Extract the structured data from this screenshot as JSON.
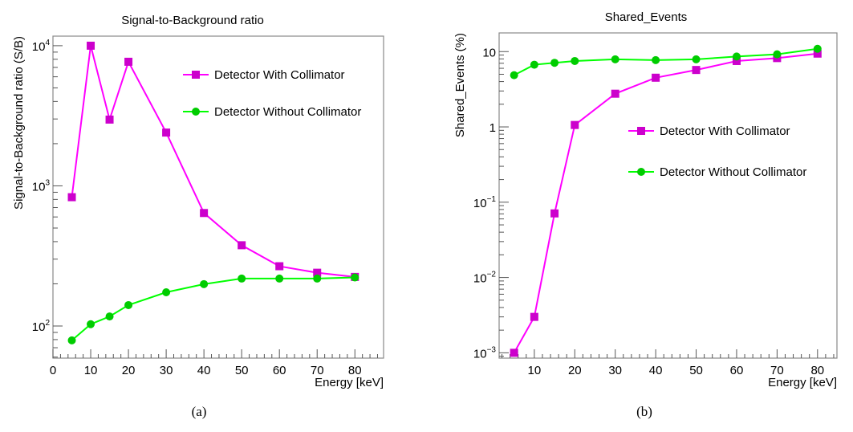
{
  "chart_data": [
    {
      "type": "line",
      "title": "Signal-to-Background ratio",
      "xlabel": "Energy [keV]",
      "ylabel": "Signal-to-Background ratio (S/B)",
      "caption": "(a)",
      "xlim": [
        0,
        87.6
      ],
      "ylim": [
        59,
        11700
      ],
      "yscale": "log",
      "xticks": [
        0,
        10,
        20,
        30,
        40,
        50,
        60,
        70,
        80
      ],
      "yticks": [
        {
          "value": 100,
          "base": "10",
          "exp": "2"
        },
        {
          "value": 1000,
          "base": "10",
          "exp": "3"
        },
        {
          "value": 10000,
          "base": "10",
          "exp": "4"
        }
      ],
      "grid": false,
      "legend_placement": "top-right",
      "x": [
        5,
        10,
        15,
        20,
        30,
        40,
        50,
        60,
        70,
        80
      ],
      "series": [
        {
          "name": "Detector With Collimator",
          "marker": "square",
          "line_color": "#ff00ff",
          "marker_color": "#cc00cc",
          "values": [
            830,
            10000,
            2970,
            7680,
            2400,
            640,
            377,
            267,
            240,
            224
          ]
        },
        {
          "name": "Detector Without Collimator",
          "marker": "circle",
          "line_color": "#00ff00",
          "marker_color": "#00cc00",
          "values": [
            79,
            103,
            117,
            141,
            174,
            199,
            218,
            218,
            218,
            222
          ]
        }
      ]
    },
    {
      "type": "line",
      "title": "Shared_Events",
      "xlabel": "Energy [keV]",
      "ylabel": "Shared_Events (%)",
      "caption": "(b)",
      "xlim": [
        1.3,
        84.8
      ],
      "ylim": [
        0.00085,
        17.7
      ],
      "yscale": "log",
      "xticks": [
        10,
        20,
        30,
        40,
        50,
        60,
        70,
        80
      ],
      "yticks": [
        {
          "value": 0.001,
          "base": "10",
          "exp": "−3"
        },
        {
          "value": 0.01,
          "base": "10",
          "exp": "−2"
        },
        {
          "value": 0.1,
          "base": "10",
          "exp": "−1"
        },
        {
          "value": 1,
          "base": "1",
          "exp": ""
        },
        {
          "value": 10,
          "base": "10",
          "exp": ""
        }
      ],
      "grid": false,
      "legend_placement": "center-right",
      "x": [
        5,
        10,
        15,
        20,
        30,
        40,
        50,
        60,
        70,
        80
      ],
      "series": [
        {
          "name": "Detector With Collimator",
          "marker": "square",
          "line_color": "#ff00ff",
          "marker_color": "#cc00cc",
          "values": [
            0.001,
            0.003,
            0.071,
            1.06,
            2.76,
            4.5,
            5.7,
            7.5,
            8.2,
            9.4
          ]
        },
        {
          "name": "Detector Without Collimator",
          "marker": "circle",
          "line_color": "#00ff00",
          "marker_color": "#00cc00",
          "values": [
            4.86,
            6.7,
            7.1,
            7.5,
            7.9,
            7.7,
            7.9,
            8.6,
            9.2,
            10.9
          ]
        }
      ]
    }
  ]
}
